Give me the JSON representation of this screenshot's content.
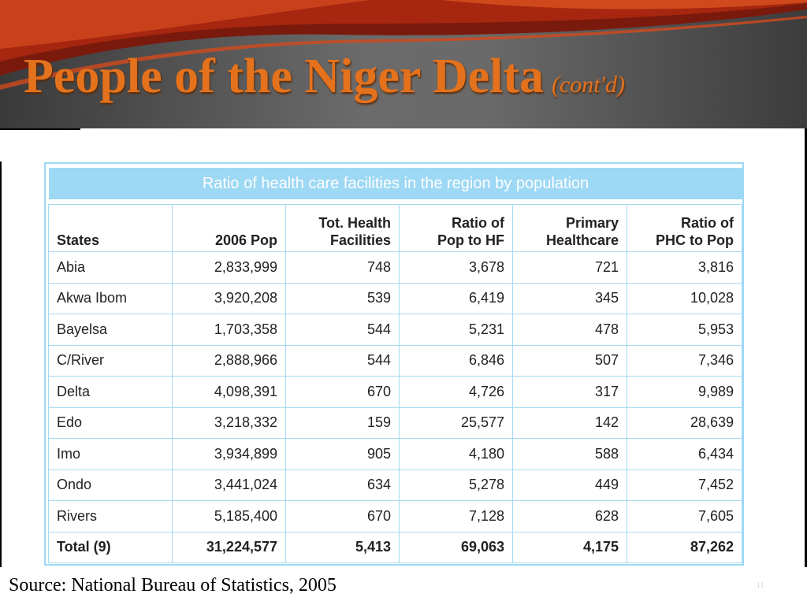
{
  "slide": {
    "title": "People of the Niger Delta",
    "title_suffix": "(cont'd)",
    "source": "Source: National Bureau of Statistics, 2005",
    "page_number": "11"
  },
  "table": {
    "caption": "Ratio of health care facilities in the region by population",
    "headers": [
      [
        "States"
      ],
      [
        "2006 Pop"
      ],
      [
        "Tot. Health",
        "Facilities"
      ],
      [
        "Ratio of",
        "Pop to HF"
      ],
      [
        "Primary",
        "Healthcare"
      ],
      [
        "Ratio of",
        "PHC to Pop"
      ]
    ],
    "rows": [
      [
        "Abia",
        "2,833,999",
        "748",
        "3,678",
        "721",
        "3,816"
      ],
      [
        "Akwa Ibom",
        "3,920,208",
        "539",
        "6,419",
        "345",
        "10,028"
      ],
      [
        "Bayelsa",
        "1,703,358",
        "544",
        "5,231",
        "478",
        "5,953"
      ],
      [
        "C/River",
        "2,888,966",
        "544",
        "6,846",
        "507",
        "7,346"
      ],
      [
        "Delta",
        "4,098,391",
        "670",
        "4,726",
        "317",
        "9,989"
      ],
      [
        "Edo",
        "3,218,332",
        "159",
        "25,577",
        "142",
        "28,639"
      ],
      [
        "Imo",
        "3,934,899",
        "905",
        "4,180",
        "588",
        "6,434"
      ],
      [
        "Ondo",
        "3,441,024",
        "634",
        "5,278",
        "449",
        "7,452"
      ],
      [
        "Rivers",
        "5,185,400",
        "670",
        "7,128",
        "628",
        "7,605"
      ]
    ],
    "total": [
      "Total (9)",
      "31,224,577",
      "5,413",
      "69,063",
      "4,175",
      "87,262"
    ]
  }
}
